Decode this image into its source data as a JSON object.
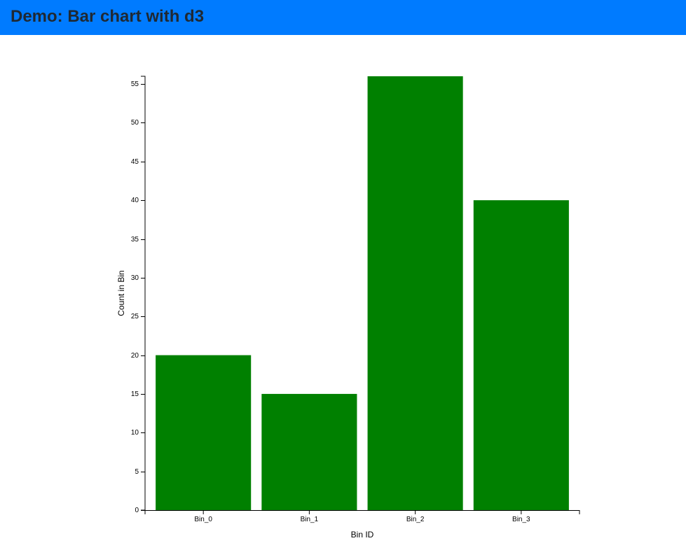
{
  "header": {
    "title": "Demo: Bar chart with d3"
  },
  "colors": {
    "header_background": "#007bff",
    "bar_fill": "#008000",
    "axis": "#000000"
  },
  "chart_data": {
    "type": "bar",
    "categories": [
      "Bin_0",
      "Bin_1",
      "Bin_2",
      "Bin_3"
    ],
    "values": [
      20,
      15,
      56,
      40
    ],
    "title": "",
    "xlabel": "Bin ID",
    "ylabel": "Count in Bin",
    "ylim": [
      0,
      56
    ],
    "yticks": [
      0,
      5,
      10,
      15,
      20,
      25,
      30,
      35,
      40,
      45,
      50,
      55
    ],
    "grid": false,
    "legend": "none"
  }
}
